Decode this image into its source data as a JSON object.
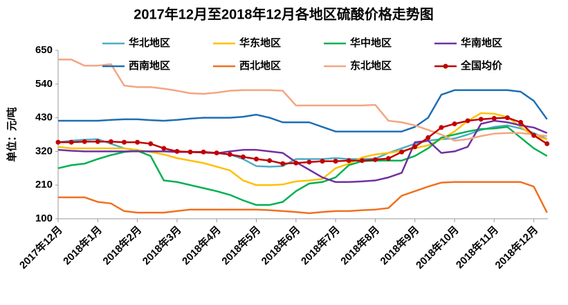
{
  "chart_data": {
    "type": "line",
    "title": "2017年12月至2018年12月各地区硫酸价格走势图",
    "y_label": "单位：元/吨",
    "categories": [
      "2017年12月",
      null,
      null,
      "2018年1月",
      null,
      null,
      "2018年2月",
      null,
      null,
      "2018年3月",
      null,
      null,
      "2018年4月",
      null,
      null,
      "2018年5月",
      null,
      null,
      "2018年6月",
      null,
      null,
      "2018年7月",
      null,
      null,
      "2018年8月",
      null,
      null,
      "2018年9月",
      null,
      null,
      "2018年10月",
      null,
      null,
      "2018年11月",
      null,
      null,
      "2018年12月",
      null
    ],
    "ylim": [
      100,
      650
    ],
    "yticks": [
      100,
      210,
      320,
      430,
      540,
      650
    ],
    "grid": false,
    "series": [
      {
        "name": "华北地区",
        "color": "#4bacc6",
        "values": [
          350,
          355,
          358,
          360,
          345,
          330,
          322,
          320,
          320,
          320,
          318,
          318,
          315,
          310,
          295,
          272,
          270,
          272,
          295,
          295,
          295,
          298,
          295,
          295,
          296,
          315,
          330,
          345,
          355,
          360,
          362,
          375,
          390,
          400,
          405,
          395,
          380,
          360
        ]
      },
      {
        "name": "华东地区",
        "color": "#ffc000",
        "values": [
          335,
          330,
          330,
          330,
          330,
          330,
          325,
          318,
          310,
          298,
          290,
          282,
          270,
          258,
          225,
          210,
          210,
          212,
          222,
          225,
          230,
          265,
          280,
          300,
          310,
          315,
          322,
          330,
          340,
          360,
          385,
          420,
          445,
          443,
          432,
          400,
          370,
          360
        ]
      },
      {
        "name": "华中地区",
        "color": "#00b050",
        "values": [
          265,
          275,
          280,
          295,
          308,
          318,
          322,
          305,
          225,
          220,
          210,
          200,
          190,
          178,
          160,
          145,
          145,
          155,
          190,
          215,
          220,
          235,
          275,
          288,
          290,
          290,
          290,
          305,
          330,
          365,
          375,
          385,
          393,
          395,
          400,
          365,
          330,
          305
        ]
      },
      {
        "name": "华南地区",
        "color": "#7030a0",
        "values": [
          325,
          322,
          320,
          320,
          320,
          320,
          320,
          320,
          320,
          318,
          318,
          316,
          314,
          320,
          325,
          325,
          320,
          315,
          285,
          260,
          235,
          220,
          220,
          222,
          225,
          235,
          250,
          350,
          355,
          315,
          320,
          335,
          410,
          420,
          415,
          405,
          398,
          380
        ]
      },
      {
        "name": "西南地区",
        "color": "#1f6db5",
        "values": [
          420,
          420,
          420,
          420,
          423,
          425,
          425,
          422,
          420,
          423,
          427,
          430,
          430,
          430,
          433,
          440,
          430,
          415,
          415,
          415,
          400,
          385,
          385,
          385,
          385,
          385,
          385,
          400,
          430,
          505,
          520,
          520,
          520,
          520,
          520,
          515,
          485,
          425
        ]
      },
      {
        "name": "西北地区",
        "color": "#f07020",
        "values": [
          170,
          170,
          170,
          155,
          150,
          125,
          120,
          120,
          120,
          125,
          130,
          130,
          130,
          130,
          130,
          130,
          128,
          125,
          122,
          118,
          122,
          125,
          125,
          128,
          130,
          135,
          175,
          190,
          205,
          218,
          220,
          220,
          220,
          220,
          220,
          220,
          205,
          120
        ]
      },
      {
        "name": "东北地区",
        "color": "#f4a582",
        "values": [
          620,
          620,
          600,
          600,
          605,
          535,
          530,
          530,
          525,
          518,
          510,
          508,
          512,
          518,
          520,
          520,
          520,
          518,
          470,
          470,
          470,
          470,
          470,
          470,
          472,
          420,
          415,
          405,
          390,
          375,
          355,
          360,
          370,
          378,
          380,
          380,
          375,
          370
        ]
      },
      {
        "name": "全国均价",
        "color": "#c00000",
        "markers": true,
        "values": [
          350,
          350,
          352,
          352,
          352,
          350,
          350,
          345,
          330,
          320,
          318,
          318,
          315,
          310,
          302,
          295,
          290,
          280,
          282,
          285,
          288,
          288,
          290,
          290,
          293,
          297,
          318,
          335,
          365,
          398,
          410,
          420,
          425,
          428,
          430,
          415,
          372,
          345
        ]
      }
    ]
  }
}
